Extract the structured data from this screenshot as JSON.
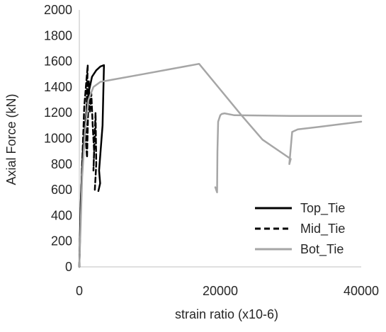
{
  "chart_data": {
    "type": "line",
    "title": "",
    "xlabel": "strain ratio (x10-6)",
    "ylabel": "Axial Force (kN)",
    "xlim": [
      0,
      40000
    ],
    "ylim": [
      0,
      2000
    ],
    "x_ticks": [
      0,
      20000,
      40000
    ],
    "x_tick_labels": [
      "0",
      "20000",
      "40000"
    ],
    "y_ticks": [
      0,
      200,
      400,
      600,
      800,
      1000,
      1200,
      1400,
      1600,
      1800,
      2000
    ],
    "y_tick_labels": [
      "0",
      "200",
      "400",
      "600",
      "800",
      "1000",
      "1200",
      "1400",
      "1600",
      "1800",
      "2000"
    ],
    "grid": false,
    "legend_position": "bottom-right",
    "series": [
      {
        "name": "Top_Tie",
        "color": "#000000",
        "dash": "solid",
        "x": [
          0,
          200,
          500,
          900,
          1300,
          1800,
          2400,
          3000,
          3500,
          3300,
          2800,
          2950,
          2700
        ],
        "y": [
          0,
          500,
          900,
          1150,
          1350,
          1480,
          1530,
          1560,
          1570,
          1100,
          750,
          650,
          590
        ]
      },
      {
        "name": "Mid_Tie",
        "color": "#000000",
        "dash": "dashed",
        "x": [
          0,
          200,
          400,
          700,
          1000,
          1200,
          900,
          1100,
          1350,
          1500,
          1700,
          1900,
          2100,
          2000,
          2200,
          2300,
          2400,
          2200
        ],
        "y": [
          0,
          450,
          800,
          1250,
          1450,
          1570,
          1000,
          850,
          1450,
          1200,
          1350,
          1100,
          900,
          750,
          1050,
          1200,
          800,
          600
        ]
      },
      {
        "name": "Bot_Tie",
        "color": "#a6a6a6",
        "dash": "solid",
        "x": [
          0,
          400,
          800,
          1300,
          2000,
          3000,
          5000,
          9000,
          13000,
          17000,
          20000,
          23000,
          26000,
          30000,
          29800,
          30200,
          31000,
          34000,
          37000,
          40000
        ],
        "y": [
          0,
          700,
          1050,
          1300,
          1400,
          1440,
          1460,
          1500,
          1540,
          1580,
          1380,
          1180,
          990,
          840,
          800,
          1050,
          1070,
          1090,
          1110,
          1130
        ]
      },
      {
        "name": "",
        "color": "#a6a6a6",
        "dash": "solid",
        "x": [
          19300,
          19550,
          19600,
          19700,
          20000,
          20200,
          20600,
          22000,
          30000,
          40000
        ],
        "y": [
          620,
          580,
          900,
          1130,
          1180,
          1190,
          1195,
          1180,
          1175,
          1175
        ]
      }
    ]
  }
}
